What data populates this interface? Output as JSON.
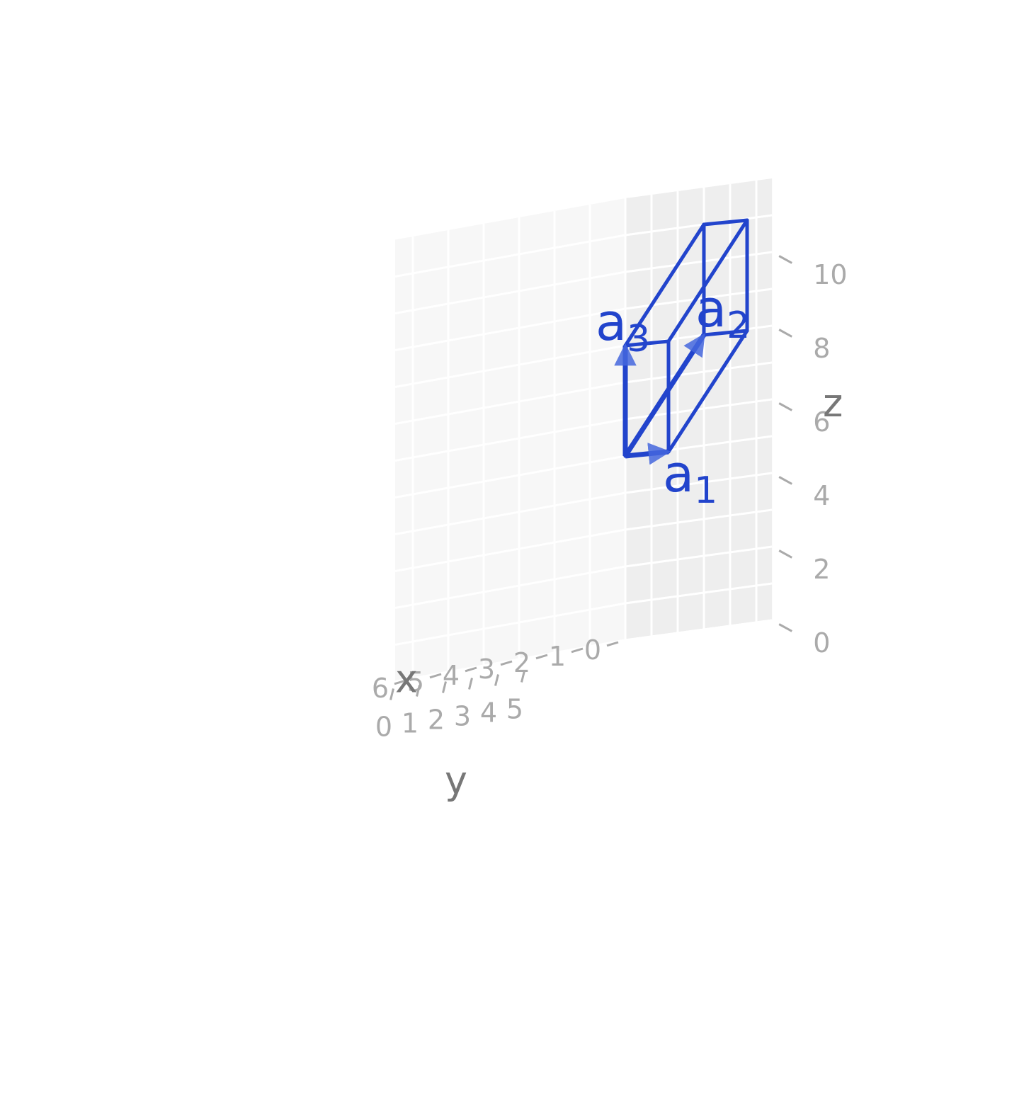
{
  "chart_data": {
    "type": "3d-parallelepiped",
    "colors": {
      "line": "#2244cc",
      "arrow": "#4466dd",
      "grid": "#ffffff",
      "tick_label": "#aaaaaa",
      "axis_title": "#777777"
    },
    "axes": {
      "x": {
        "title": "x",
        "ticks": [
          "0",
          "1",
          "2",
          "3",
          "4",
          "5",
          "6"
        ],
        "range": [
          0,
          6.5
        ]
      },
      "y": {
        "title": "y",
        "ticks": [
          "0",
          "1",
          "2",
          "3",
          "4",
          "5"
        ],
        "range": [
          0,
          5.6
        ]
      },
      "z": {
        "title": "z",
        "ticks": [
          "0",
          "2",
          "4",
          "6",
          "8",
          "10"
        ],
        "range": [
          0,
          12
        ]
      }
    },
    "vectors": [
      {
        "name": "a",
        "sub": "1",
        "from": [
          0,
          0,
          5
        ],
        "to": [
          1,
          3,
          5
        ]
      },
      {
        "name": "a",
        "sub": "2",
        "from": [
          0,
          0,
          5
        ],
        "to": [
          0,
          3,
          8
        ]
      },
      {
        "name": "a",
        "sub": "3",
        "from": [
          0,
          0,
          5
        ],
        "to": [
          0,
          0,
          8
        ]
      }
    ],
    "vertices": [
      [
        0,
        0,
        5
      ],
      [
        1,
        3,
        5
      ],
      [
        0,
        3,
        8
      ],
      [
        0,
        0,
        8
      ],
      [
        1,
        6,
        8
      ],
      [
        1,
        3,
        8
      ],
      [
        0,
        3,
        11
      ],
      [
        1,
        6,
        11
      ]
    ],
    "edges": [
      [
        1,
        4
      ],
      [
        2,
        6
      ],
      [
        3,
        5
      ],
      [
        3,
        6
      ],
      [
        1,
        5
      ],
      [
        2,
        4
      ],
      [
        4,
        7
      ],
      [
        5,
        7
      ],
      [
        6,
        7
      ],
      [
        0,
        1
      ],
      [
        0,
        3
      ],
      [
        0,
        2
      ]
    ]
  }
}
